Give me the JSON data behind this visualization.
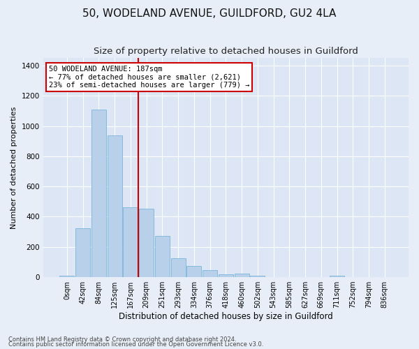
{
  "title": "50, WODELAND AVENUE, GUILDFORD, GU2 4LA",
  "subtitle": "Size of property relative to detached houses in Guildford",
  "xlabel": "Distribution of detached houses by size in Guildford",
  "ylabel": "Number of detached properties",
  "footnote1": "Contains HM Land Registry data © Crown copyright and database right 2024.",
  "footnote2": "Contains public sector information licensed under the Open Government Licence v3.0.",
  "categories": [
    "0sqm",
    "42sqm",
    "84sqm",
    "125sqm",
    "167sqm",
    "209sqm",
    "251sqm",
    "293sqm",
    "334sqm",
    "376sqm",
    "418sqm",
    "460sqm",
    "502sqm",
    "543sqm",
    "585sqm",
    "627sqm",
    "669sqm",
    "711sqm",
    "752sqm",
    "794sqm",
    "836sqm"
  ],
  "values": [
    8,
    325,
    1110,
    940,
    460,
    455,
    275,
    125,
    75,
    48,
    20,
    25,
    10,
    2,
    0,
    0,
    0,
    8,
    0,
    0,
    0
  ],
  "bar_color": "#b8d0ea",
  "bar_edge_color": "#6aaed6",
  "vline_color": "#cc0000",
  "vline_x": 4.48,
  "annotation_label": "50 WODELAND AVENUE: 187sqm",
  "annotation_line1": "← 77% of detached houses are smaller (2,621)",
  "annotation_line2": "23% of semi-detached houses are larger (779) →",
  "ylim": [
    0,
    1450
  ],
  "yticks": [
    0,
    200,
    400,
    600,
    800,
    1000,
    1200,
    1400
  ],
  "bg_color": "#e8eef8",
  "plot_bg_color": "#dce6f5",
  "grid_color": "#ffffff",
  "title_fontsize": 11,
  "subtitle_fontsize": 9.5,
  "xlabel_fontsize": 8.5,
  "ylabel_fontsize": 8,
  "tick_fontsize": 7,
  "annot_fontsize": 7.5,
  "footnote_fontsize": 6
}
